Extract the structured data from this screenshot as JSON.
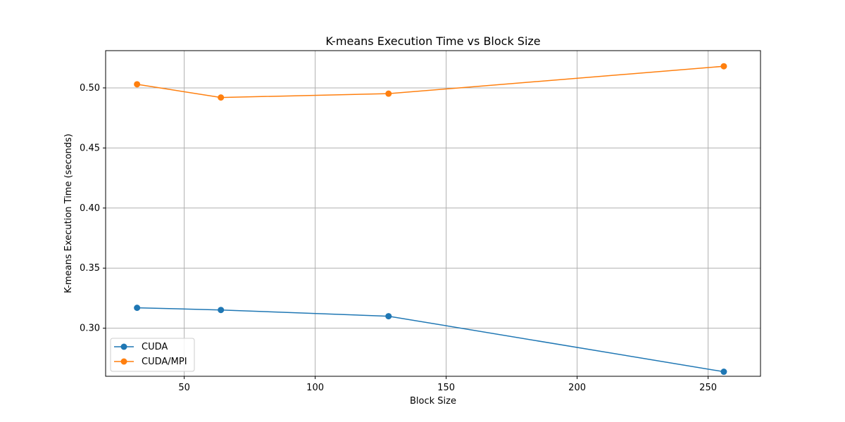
{
  "chart_data": {
    "type": "line",
    "title": "K-means Execution Time vs Block Size",
    "xlabel": "Block Size",
    "ylabel": "K-means Execution Time (seconds)",
    "xlim": [
      20,
      270
    ],
    "ylim": [
      0.26,
      0.531
    ],
    "xticks": [
      50,
      100,
      150,
      200,
      250
    ],
    "yticks": [
      0.3,
      0.35,
      0.4,
      0.45,
      0.5
    ],
    "xtick_labels": [
      "50",
      "100",
      "150",
      "200",
      "250"
    ],
    "ytick_labels": [
      "0.30",
      "0.35",
      "0.40",
      "0.45",
      "0.50"
    ],
    "grid": true,
    "legend_position": "lower-left",
    "series": [
      {
        "name": "CUDA",
        "color": "#1f77b4",
        "marker": "circle",
        "x": [
          32,
          64,
          128,
          256
        ],
        "y": [
          0.317,
          0.3152,
          0.31,
          0.2638
        ]
      },
      {
        "name": "CUDA/MPI",
        "color": "#ff7f0e",
        "marker": "circle",
        "x": [
          32,
          64,
          128,
          256
        ],
        "y": [
          0.503,
          0.492,
          0.4952,
          0.518
        ]
      }
    ]
  }
}
